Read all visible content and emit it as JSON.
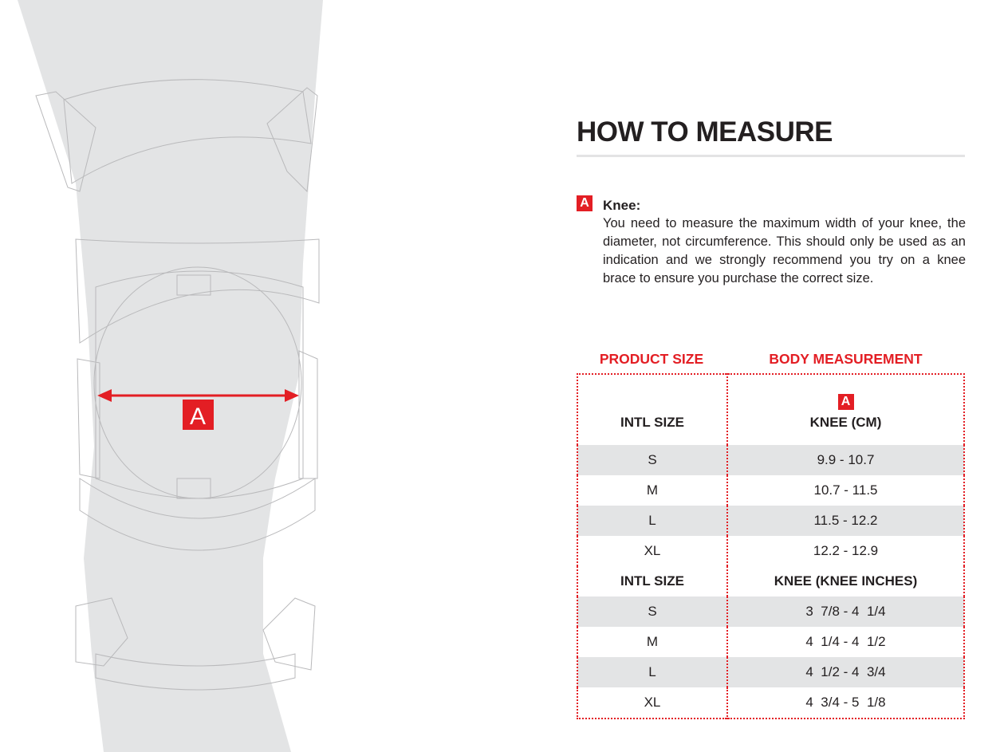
{
  "illustration": {
    "marker_label": "A",
    "accent": "#e31e24",
    "leg_color": "#e3e4e5"
  },
  "title": "HOW TO MEASURE",
  "measurement": {
    "badge": "A",
    "label": "Knee:",
    "text": "You need to measure the maximum width of your knee, the diameter, not circumference. This should only be used as an indication and we strongly recommend you try on a knee brace to ensure you purchase the correct size."
  },
  "table": {
    "col_headers": [
      "PRODUCT SIZE",
      "BODY MEASUREMENT"
    ],
    "badge": "A",
    "sections": [
      {
        "size_header": "INTL SIZE",
        "measure_header": "KNEE (CM)",
        "rows": [
          [
            "S",
            "9.9 - 10.7"
          ],
          [
            "M",
            "10.7 - 11.5"
          ],
          [
            "L",
            "11.5 - 12.2"
          ],
          [
            "XL",
            "12.2 - 12.9"
          ]
        ]
      },
      {
        "size_header": "INTL SIZE",
        "measure_header": "KNEE (KNEE INCHES)",
        "rows": [
          [
            "S",
            "3  7/8 - 4  1/4"
          ],
          [
            "M",
            "4  1/4 - 4  1/2"
          ],
          [
            "L",
            "4  1/2 - 4  3/4"
          ],
          [
            "XL",
            "4  3/4 - 5  1/8"
          ]
        ]
      }
    ]
  }
}
